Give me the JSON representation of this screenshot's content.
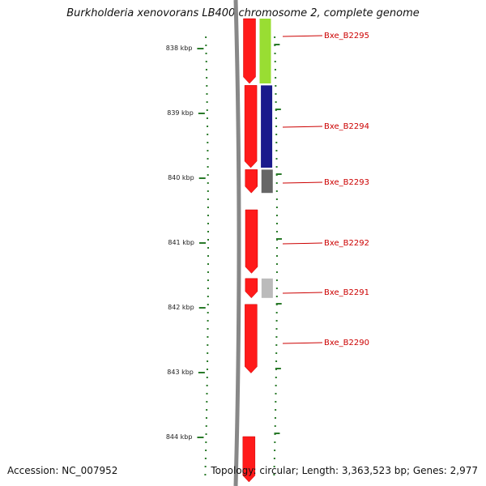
{
  "title": "Burkholderia xenovorans LB400 chromosome 2, complete genome",
  "footer": {
    "accession": "Accession: NC_007952",
    "summary": "Topology: circular; Length: 3,363,523 bp; Genes: 2,977"
  },
  "kbp_ticks": [
    {
      "label": "838 kbp",
      "kbp": 838
    },
    {
      "label": "839 kbp",
      "kbp": 839
    },
    {
      "label": "840 kbp",
      "kbp": 840
    },
    {
      "label": "841 kbp",
      "kbp": 841
    },
    {
      "label": "842 kbp",
      "kbp": 842
    },
    {
      "label": "843 kbp",
      "kbp": 843
    },
    {
      "label": "844 kbp",
      "kbp": 844
    }
  ],
  "genes": [
    {
      "label": "Bxe_B2295",
      "start_kbp": 837.55,
      "end_kbp": 838.55,
      "strand": "+"
    },
    {
      "label": "Bxe_B2294",
      "start_kbp": 838.58,
      "end_kbp": 839.85,
      "strand": "+"
    },
    {
      "label": "Bxe_B2293",
      "start_kbp": 839.88,
      "end_kbp": 840.24,
      "strand": "+"
    },
    {
      "label": "Bxe_B2292",
      "start_kbp": 840.5,
      "end_kbp": 841.48,
      "strand": "+"
    },
    {
      "label": "Bxe_B2291",
      "start_kbp": 841.56,
      "end_kbp": 841.86,
      "strand": "+"
    },
    {
      "label": "Bxe_B2290",
      "start_kbp": 841.96,
      "end_kbp": 843.02,
      "strand": "+"
    },
    {
      "label": "",
      "start_kbp": 844.0,
      "end_kbp": 844.7,
      "strand": "+"
    }
  ],
  "feature_blocks": [
    {
      "name": "cds-feature",
      "color": "#99dd33",
      "start_kbp": 837.55,
      "end_kbp": 838.55
    },
    {
      "name": "cds-feature",
      "color": "#1a1a8c",
      "start_kbp": 838.58,
      "end_kbp": 839.85
    },
    {
      "name": "cds-feature",
      "color": "#666666",
      "start_kbp": 839.88,
      "end_kbp": 840.24
    },
    {
      "name": "cds-feature",
      "color": "#bbbbbb",
      "start_kbp": 841.56,
      "end_kbp": 841.86
    }
  ],
  "colors": {
    "gene_arrow": "#ff1a1a",
    "backbone": "#888888",
    "tick": "#2a7a2a",
    "label": "#cc0000"
  }
}
